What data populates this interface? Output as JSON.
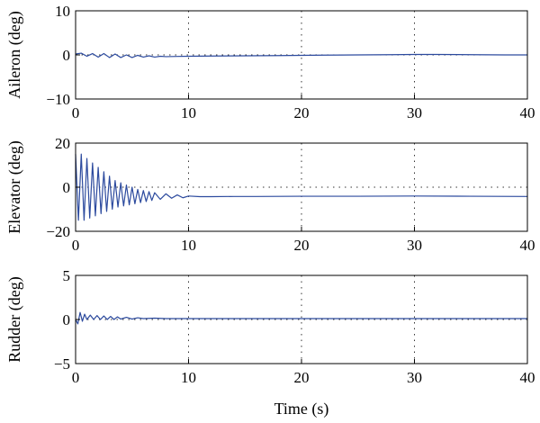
{
  "chart_data": [
    {
      "type": "line",
      "ylabel": "Aileron (deg)",
      "xlim": [
        0,
        40
      ],
      "ylim": [
        -10,
        10
      ],
      "xticks": [
        0,
        10,
        20,
        30,
        40
      ],
      "yticks": [
        -10,
        0,
        10
      ],
      "xtick_labels": [
        "0",
        "10",
        "20",
        "30",
        "40"
      ],
      "ytick_labels": [
        "−10",
        "0",
        "10"
      ],
      "grid": "dotted",
      "line_color": "#2c4a9e",
      "series": [
        {
          "x": [
            0,
            0.5,
            1,
            1.5,
            2,
            2.5,
            3,
            3.5,
            4,
            4.5,
            5,
            5.5,
            6,
            6.5,
            7,
            7.5,
            8,
            9,
            10,
            12,
            15,
            18,
            20,
            22,
            25,
            28,
            30,
            32,
            35,
            38,
            40
          ],
          "y": [
            0.2,
            0.4,
            -0.3,
            0.3,
            -0.5,
            0.3,
            -0.6,
            0.2,
            -0.6,
            0.0,
            -0.6,
            -0.1,
            -0.5,
            -0.2,
            -0.5,
            -0.3,
            -0.4,
            -0.35,
            -0.3,
            -0.25,
            -0.2,
            -0.15,
            -0.1,
            -0.05,
            0.0,
            0.05,
            0.1,
            0.1,
            0.05,
            0.0,
            0.0
          ]
        }
      ]
    },
    {
      "type": "line",
      "ylabel": "Elevator (deg)",
      "xlim": [
        0,
        40
      ],
      "ylim": [
        -20,
        20
      ],
      "xticks": [
        0,
        10,
        20,
        30,
        40
      ],
      "yticks": [
        -20,
        0,
        20
      ],
      "xtick_labels": [
        "0",
        "10",
        "20",
        "30",
        "40"
      ],
      "ytick_labels": [
        "−20",
        "0",
        "20"
      ],
      "grid": "dotted",
      "line_color": "#2c4a9e",
      "series": [
        {
          "x": [
            0,
            0.25,
            0.5,
            0.75,
            1,
            1.25,
            1.5,
            1.75,
            2,
            2.25,
            2.5,
            2.75,
            3,
            3.25,
            3.5,
            3.75,
            4,
            4.25,
            4.5,
            4.75,
            5,
            5.25,
            5.5,
            5.75,
            6,
            6.25,
            6.5,
            6.75,
            7,
            7.5,
            8,
            8.5,
            9,
            9.5,
            10,
            11,
            12,
            14,
            16,
            20,
            25,
            30,
            35,
            40
          ],
          "y": [
            15,
            -15,
            15,
            -15,
            13,
            -14,
            11,
            -13,
            9,
            -12,
            7,
            -11,
            5,
            -10,
            3,
            -9,
            2,
            -8.5,
            1,
            -8,
            0,
            -7.5,
            -1,
            -7,
            -1.5,
            -6.5,
            -2,
            -6,
            -2.5,
            -5.5,
            -3,
            -5,
            -3.5,
            -4.8,
            -4,
            -4.3,
            -4.3,
            -4.2,
            -4.2,
            -4.1,
            -4.1,
            -4.0,
            -4.1,
            -4.2
          ]
        }
      ]
    },
    {
      "type": "line",
      "ylabel": "Rudder (deg)",
      "xlabel": "Time (s)",
      "xlim": [
        0,
        40
      ],
      "ylim": [
        -5,
        5
      ],
      "xticks": [
        0,
        10,
        20,
        30,
        40
      ],
      "yticks": [
        -5,
        0,
        5
      ],
      "xtick_labels": [
        "0",
        "10",
        "20",
        "30",
        "40"
      ],
      "ytick_labels": [
        "−5",
        "0",
        "5"
      ],
      "grid": "dotted",
      "line_color": "#2c4a9e",
      "series": [
        {
          "x": [
            0,
            0.2,
            0.4,
            0.6,
            0.8,
            1,
            1.3,
            1.6,
            1.9,
            2.2,
            2.5,
            2.8,
            3.1,
            3.4,
            3.7,
            4,
            4.5,
            5,
            5.5,
            6,
            7,
            8,
            10,
            15,
            20,
            25,
            30,
            35,
            40
          ],
          "y": [
            0,
            -0.5,
            0.8,
            -0.2,
            0.6,
            0.0,
            0.5,
            0.0,
            0.45,
            0.0,
            0.4,
            0.0,
            0.35,
            0.0,
            0.3,
            0.05,
            0.25,
            0.05,
            0.2,
            0.1,
            0.15,
            0.1,
            0.1,
            0.1,
            0.1,
            0.1,
            0.1,
            0.1,
            0.1
          ]
        }
      ]
    }
  ]
}
